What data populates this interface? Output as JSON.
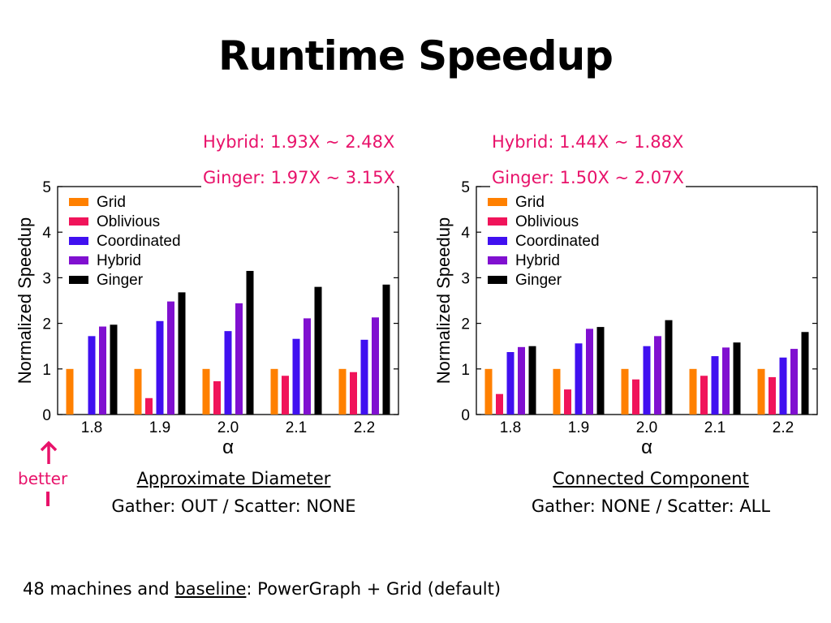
{
  "slide": {
    "title": "Runtime Speedup"
  },
  "better": {
    "label": "better"
  },
  "footer": {
    "prefix": "48 machines and ",
    "underlined": "baseline",
    "suffix": ": PowerGraph + Grid (default)"
  },
  "colors": {
    "grid": "#ff8000",
    "oblivious": "#f0145a",
    "coordinated": "#4010f0",
    "hybrid": "#8010d0",
    "ginger": "#000000",
    "annotation": "#e8126a"
  },
  "panels": [
    {
      "annotation_hybrid": "Hybrid: 1.93X ~ 2.48X",
      "annotation_ginger": "Ginger: 1.97X ~ 3.15X",
      "caption_title": "Approximate Diameter",
      "caption_sub": "Gather: OUT / Scatter: NONE"
    },
    {
      "annotation_hybrid": "Hybrid: 1.44X ~ 1.88X",
      "annotation_ginger": "Ginger: 1.50X ~ 2.07X",
      "caption_title": "Connected Component",
      "caption_sub": "Gather: NONE / Scatter: ALL"
    }
  ],
  "chart_data": [
    {
      "type": "bar",
      "categories": [
        "1.8",
        "1.9",
        "2.0",
        "2.1",
        "2.2"
      ],
      "xlabel": "α",
      "ylabel": "Normalized Speedup",
      "ylim": [
        0,
        5
      ],
      "yticks": [
        "0",
        "1",
        "2",
        "3",
        "4",
        "5"
      ],
      "legend_position": "top-left",
      "series": [
        {
          "name": "Grid",
          "color": "#ff8000",
          "values": [
            1.0,
            1.0,
            1.0,
            1.0,
            1.0
          ]
        },
        {
          "name": "Oblivious",
          "color": "#f0145a",
          "values": [
            null,
            0.36,
            0.73,
            0.85,
            0.93
          ]
        },
        {
          "name": "Coordinated",
          "color": "#4010f0",
          "values": [
            1.72,
            2.05,
            1.83,
            1.66,
            1.64
          ]
        },
        {
          "name": "Hybrid",
          "color": "#8010d0",
          "values": [
            1.93,
            2.48,
            2.44,
            2.11,
            2.13
          ]
        },
        {
          "name": "Ginger",
          "color": "#000000",
          "values": [
            1.97,
            2.68,
            3.15,
            2.8,
            2.85
          ]
        }
      ]
    },
    {
      "type": "bar",
      "categories": [
        "1.8",
        "1.9",
        "2.0",
        "2.1",
        "2.2"
      ],
      "xlabel": "α",
      "ylabel": "Normalized Speedup",
      "ylim": [
        0,
        5
      ],
      "yticks": [
        "0",
        "1",
        "2",
        "3",
        "4",
        "5"
      ],
      "legend_position": "top-left",
      "series": [
        {
          "name": "Grid",
          "color": "#ff8000",
          "values": [
            1.0,
            1.0,
            1.0,
            1.0,
            1.0
          ]
        },
        {
          "name": "Oblivious",
          "color": "#f0145a",
          "values": [
            0.45,
            0.55,
            0.77,
            0.85,
            0.82
          ]
        },
        {
          "name": "Coordinated",
          "color": "#4010f0",
          "values": [
            1.37,
            1.56,
            1.5,
            1.28,
            1.25
          ]
        },
        {
          "name": "Hybrid",
          "color": "#8010d0",
          "values": [
            1.48,
            1.88,
            1.72,
            1.47,
            1.44
          ]
        },
        {
          "name": "Ginger",
          "color": "#000000",
          "values": [
            1.5,
            1.92,
            2.07,
            1.58,
            1.81
          ]
        }
      ]
    }
  ]
}
